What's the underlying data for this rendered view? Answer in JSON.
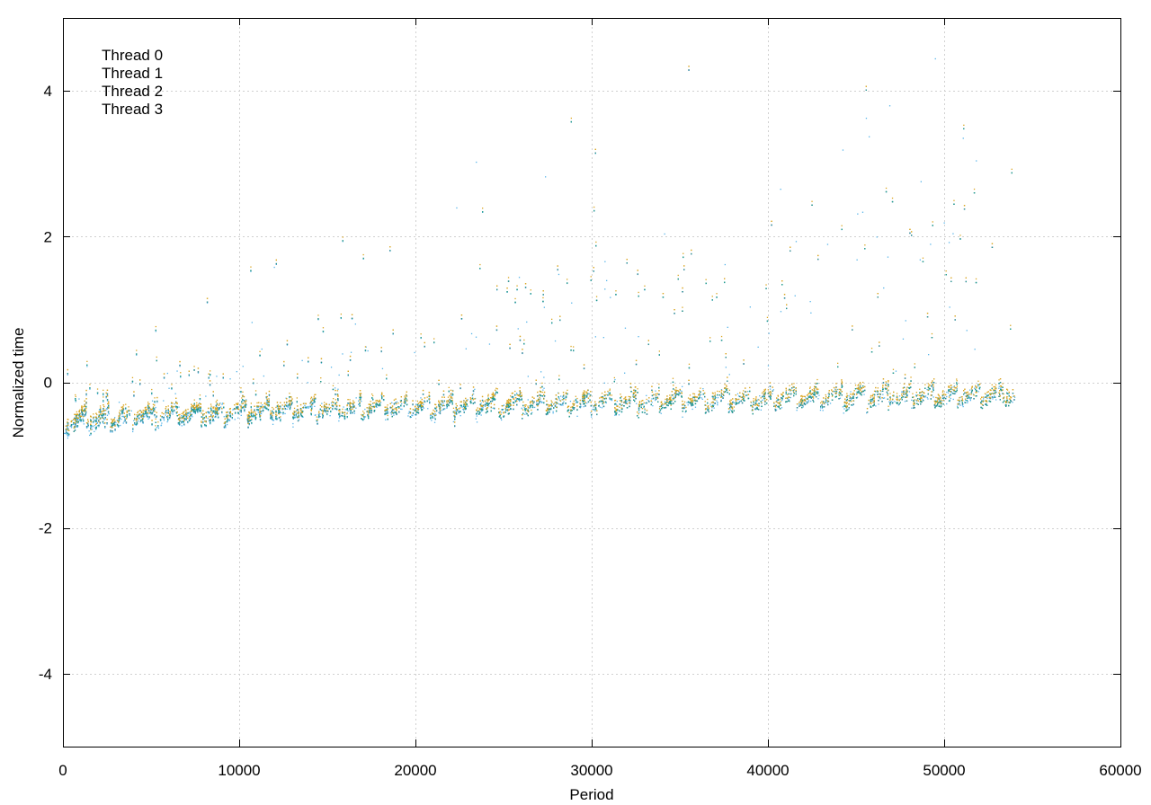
{
  "chart_data": {
    "type": "scatter",
    "title": "",
    "xlabel": "Period",
    "ylabel": "Normalized time",
    "xlim": [
      0,
      60000
    ],
    "ylim": [
      -5,
      5
    ],
    "x_ticks": [
      0,
      10000,
      20000,
      30000,
      40000,
      50000,
      60000
    ],
    "x_tick_labels": [
      "0",
      "10000",
      "20000",
      "30000",
      "40000",
      "50000",
      "60000"
    ],
    "y_ticks": [
      -4,
      -2,
      0,
      2,
      4
    ],
    "y_tick_labels": [
      "-4",
      "-2",
      "0",
      "2",
      "4"
    ],
    "grid": true,
    "legend": {
      "placement": "top-left",
      "entries": [
        "Thread 0",
        "Thread 1",
        "Thread 2",
        "Thread 3"
      ]
    },
    "series": [
      {
        "name": "Thread 0",
        "color": "#56b4e9",
        "x_range": [
          0,
          54000
        ],
        "baseline_start": -0.72,
        "baseline_end": -0.3,
        "description_points": [
          [
            0,
            -0.75
          ],
          [
            10000,
            -0.55
          ],
          [
            20000,
            -0.45
          ],
          [
            30000,
            -0.35
          ],
          [
            40000,
            -0.3
          ],
          [
            50000,
            -0.3
          ],
          [
            54000,
            -0.35
          ]
        ]
      },
      {
        "name": "Thread 1",
        "color": "#9467bd",
        "x_range": [
          0,
          54000
        ],
        "baseline_start": -0.7,
        "baseline_end": -0.3,
        "description_points": [
          [
            0,
            -0.72
          ],
          [
            10000,
            -0.52
          ],
          [
            20000,
            -0.42
          ],
          [
            30000,
            -0.33
          ],
          [
            40000,
            -0.28
          ],
          [
            50000,
            -0.28
          ],
          [
            54000,
            -0.32
          ]
        ]
      },
      {
        "name": "Thread 2",
        "color": "#1f9e89",
        "x_range": [
          0,
          54000
        ],
        "baseline_start": -0.7,
        "baseline_end": -0.3,
        "description_points": [
          [
            0,
            -0.7
          ],
          [
            10000,
            -0.5
          ],
          [
            20000,
            -0.42
          ],
          [
            30000,
            -0.33
          ],
          [
            40000,
            -0.3
          ],
          [
            50000,
            -0.3
          ],
          [
            54000,
            -0.33
          ]
        ]
      },
      {
        "name": "Thread 3",
        "color": "#daa520",
        "x_range": [
          0,
          54000
        ],
        "baseline_start": -0.65,
        "baseline_end": -0.25,
        "description_points": [
          [
            0,
            -0.68
          ],
          [
            10000,
            -0.48
          ],
          [
            20000,
            -0.4
          ],
          [
            30000,
            -0.3
          ],
          [
            40000,
            -0.25
          ],
          [
            50000,
            -0.25
          ],
          [
            54000,
            -0.3
          ]
        ]
      }
    ]
  }
}
